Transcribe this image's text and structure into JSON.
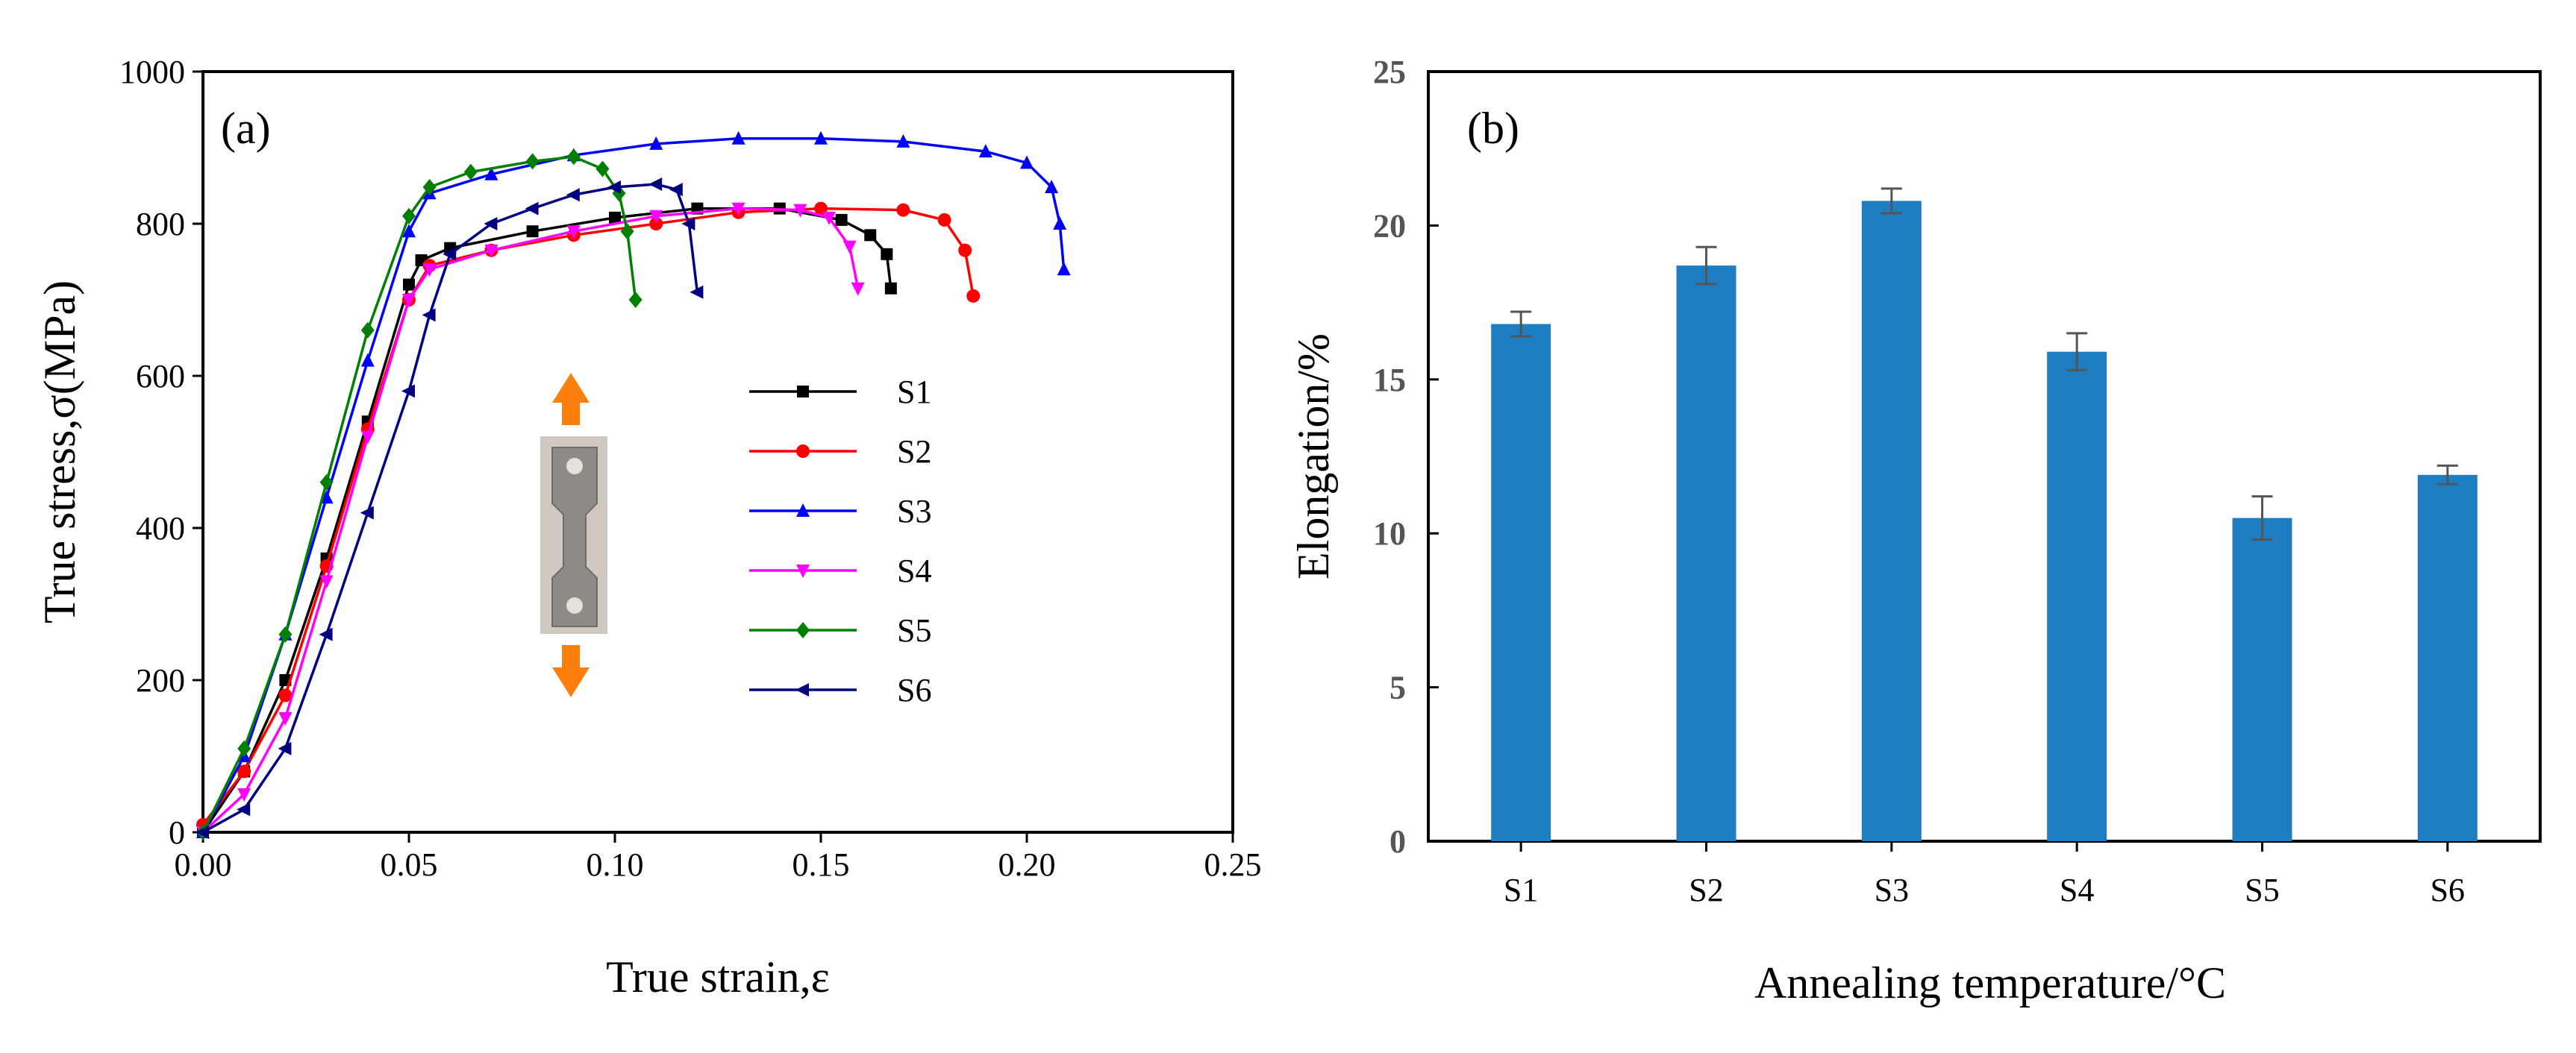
{
  "chart_data": [
    {
      "type": "line",
      "panel_label": "(a)",
      "xlabel": "True strain,ε",
      "ylabel": "True stress,σ(MPa)",
      "xlim": [
        0,
        0.25
      ],
      "ylim": [
        0,
        1000
      ],
      "xticks": [
        "0.00",
        "0.05",
        "0.10",
        "0.15",
        "0.20",
        "0.25"
      ],
      "yticks": [
        "0",
        "200",
        "400",
        "600",
        "800",
        "1000"
      ],
      "grid": false,
      "legend_position": "center-right",
      "inset": "tensile specimen photo with arrows",
      "series": [
        {
          "name": "S1",
          "color": "#000000",
          "marker": "square",
          "x": [
            0.0,
            0.01,
            0.02,
            0.03,
            0.04,
            0.05,
            0.053,
            0.06,
            0.08,
            0.1,
            0.12,
            0.14,
            0.155,
            0.162,
            0.166,
            0.167
          ],
          "y": [
            0,
            80,
            200,
            360,
            540,
            720,
            752,
            768,
            790,
            808,
            820,
            820,
            805,
            785,
            760,
            715
          ]
        },
        {
          "name": "S2",
          "color": "#ff0000",
          "marker": "circle",
          "x": [
            0.0,
            0.01,
            0.02,
            0.03,
            0.04,
            0.05,
            0.055,
            0.07,
            0.09,
            0.11,
            0.13,
            0.15,
            0.17,
            0.18,
            0.185,
            0.187
          ],
          "y": [
            10,
            80,
            180,
            350,
            530,
            700,
            745,
            765,
            785,
            800,
            815,
            820,
            818,
            805,
            765,
            705
          ]
        },
        {
          "name": "S3",
          "color": "#0000ff",
          "marker": "triangle-up",
          "x": [
            0.0,
            0.01,
            0.02,
            0.03,
            0.04,
            0.05,
            0.055,
            0.07,
            0.09,
            0.11,
            0.13,
            0.15,
            0.17,
            0.19,
            0.2,
            0.206,
            0.208,
            0.209
          ],
          "y": [
            0,
            100,
            260,
            440,
            620,
            790,
            840,
            865,
            890,
            905,
            912,
            912,
            908,
            895,
            880,
            848,
            800,
            740
          ]
        },
        {
          "name": "S4",
          "color": "#ff00ff",
          "marker": "triangle-down",
          "x": [
            0.0,
            0.01,
            0.02,
            0.03,
            0.04,
            0.05,
            0.055,
            0.07,
            0.09,
            0.11,
            0.13,
            0.145,
            0.152,
            0.157,
            0.159
          ],
          "y": [
            0,
            50,
            150,
            330,
            520,
            700,
            740,
            765,
            790,
            810,
            820,
            818,
            808,
            770,
            715
          ]
        },
        {
          "name": "S5",
          "color": "#008000",
          "marker": "diamond",
          "x": [
            0.0,
            0.01,
            0.02,
            0.03,
            0.04,
            0.05,
            0.055,
            0.065,
            0.08,
            0.09,
            0.097,
            0.101,
            0.103,
            0.105
          ],
          "y": [
            0,
            110,
            260,
            460,
            660,
            810,
            848,
            868,
            882,
            888,
            872,
            840,
            790,
            700
          ]
        },
        {
          "name": "S6",
          "color": "#000080",
          "marker": "triangle-left",
          "x": [
            0.0,
            0.01,
            0.02,
            0.03,
            0.04,
            0.05,
            0.055,
            0.06,
            0.07,
            0.08,
            0.09,
            0.1,
            0.11,
            0.115,
            0.118,
            0.12
          ],
          "y": [
            0,
            30,
            110,
            260,
            420,
            580,
            680,
            760,
            800,
            820,
            838,
            848,
            852,
            845,
            800,
            710
          ]
        }
      ]
    },
    {
      "type": "bar",
      "panel_label": "(b)",
      "xlabel": "Annealing temperature/°C",
      "ylabel": "Elongation/%",
      "ylim": [
        0,
        25
      ],
      "yticks": [
        "0",
        "5",
        "10",
        "15",
        "20",
        "25"
      ],
      "grid": false,
      "categories": [
        "S1",
        "S2",
        "S3",
        "S4",
        "S5",
        "S6"
      ],
      "values": [
        16.8,
        18.7,
        20.8,
        15.9,
        10.5,
        11.9
      ],
      "errors": [
        0.4,
        0.6,
        0.4,
        0.6,
        0.7,
        0.3
      ],
      "bar_color": "#1f7ec2",
      "error_color": "#555555"
    }
  ]
}
